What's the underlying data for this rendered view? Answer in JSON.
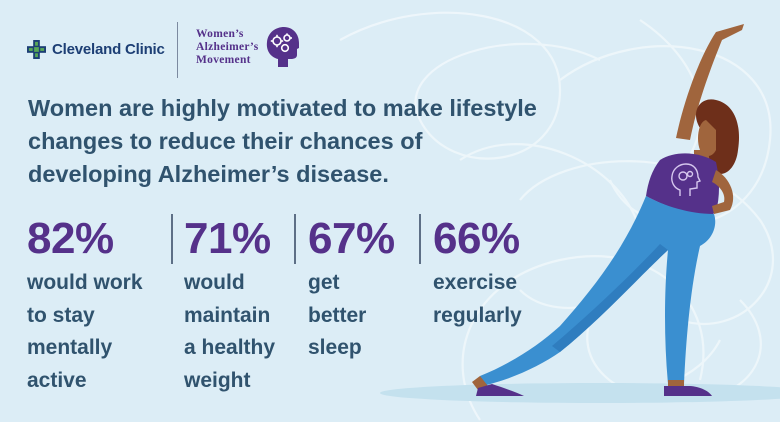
{
  "logos": {
    "cleveland_clinic": "Cleveland Clinic",
    "womens_alzheimers_movement": {
      "line1": "Women’s",
      "line2": "Alzheimer’s",
      "line3": "Movement"
    }
  },
  "headline": "Women are highly motivated to make lifestyle changes to reduce their chances of developing Alzheimer’s disease.",
  "stats": [
    {
      "percent": "82%",
      "line1": "would work",
      "line2": "to stay",
      "line3": "mentally",
      "line4": "active"
    },
    {
      "percent": "71%",
      "line1": "would",
      "line2": "maintain",
      "line3": "a healthy",
      "line4": "weight"
    },
    {
      "percent": "67%",
      "line1": "get",
      "line2": "better",
      "line3": "sleep",
      "line4": ""
    },
    {
      "percent": "66%",
      "line1": "exercise",
      "line2": "regularly",
      "line3": "",
      "line4": ""
    }
  ],
  "colors": {
    "background": "#dcedf6",
    "purple": "#55318a",
    "navy_text": "#30536e",
    "cleveland_blue": "#1d3f75",
    "cleveland_green": "#58a857",
    "pants_blue": "#3a8fd0",
    "skin": "#a0653d"
  },
  "icons": {
    "cleveland_clinic_logo": "cross-icon",
    "wam_logo": "head-gears-icon",
    "shirt_graphic": "brain-head-icon"
  }
}
